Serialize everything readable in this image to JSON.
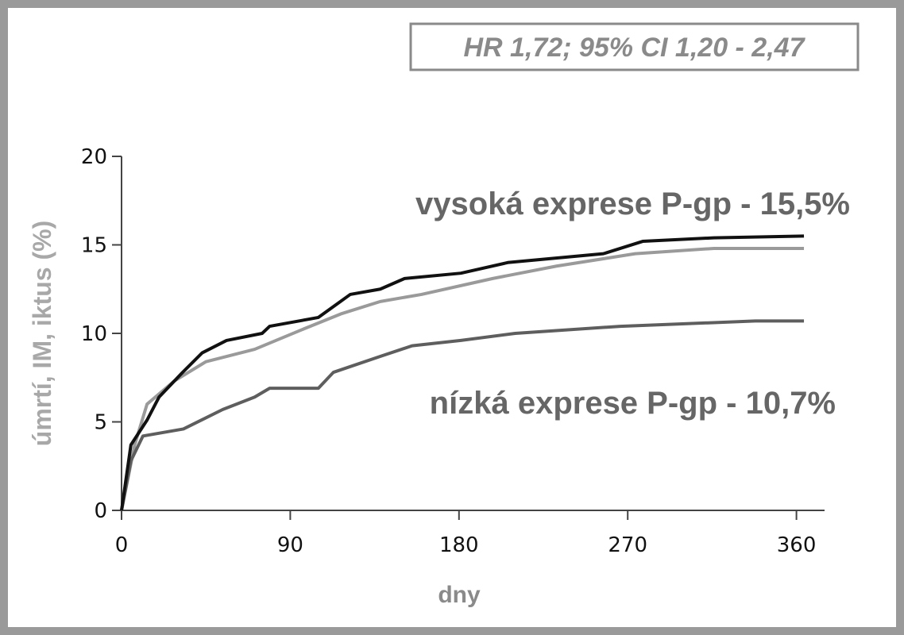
{
  "chart_data": {
    "type": "line",
    "annotation": "HR 1,72; 95% CI 1,20 - 2,47",
    "x_label": "dny",
    "y_label": "úmrtí, IM, iktus (%)",
    "xlim": [
      0,
      375
    ],
    "xticks": [
      0,
      90,
      180,
      270,
      360
    ],
    "ylim": [
      0,
      20
    ],
    "yticks": [
      0,
      5,
      10,
      15,
      20
    ],
    "series": [
      {
        "name": "vysoká exprese P-gp - 15,5%",
        "color": "#111111",
        "x": [
          0,
          5,
          13.6,
          20,
          32.6,
          43,
          56,
          75,
          79,
          105,
          122,
          138,
          151,
          181,
          206,
          257,
          278,
          316,
          364
        ],
        "values": [
          0,
          3.7,
          5.1,
          6.4,
          7.8,
          8.9,
          9.6,
          10,
          10.4,
          10.9,
          12.2,
          12.5,
          13.1,
          13.4,
          14,
          14.5,
          15.2,
          15.4,
          15.5
        ]
      },
      {
        "color": "#9a9a9a",
        "x": [
          0,
          7,
          13.6,
          28,
          45,
          71,
          96,
          117,
          138,
          160,
          198,
          232,
          274,
          316,
          364
        ],
        "values": [
          0,
          3.7,
          6,
          7.3,
          8.4,
          9.1,
          10.2,
          11.1,
          11.8,
          12.2,
          13.1,
          13.8,
          14.5,
          14.8,
          14.8
        ]
      },
      {
        "name": "nízká exprese P-gp - 10,7%",
        "color": "#5e5e5e",
        "x": [
          0,
          5,
          11.4,
          33,
          54,
          71,
          79,
          105,
          113,
          138,
          155,
          181,
          210,
          266,
          338,
          364
        ],
        "values": [
          0,
          2.8,
          4.2,
          4.6,
          5.7,
          6.4,
          6.9,
          6.9,
          7.8,
          8.7,
          9.3,
          9.6,
          10,
          10.4,
          10.7,
          10.7
        ]
      }
    ]
  }
}
